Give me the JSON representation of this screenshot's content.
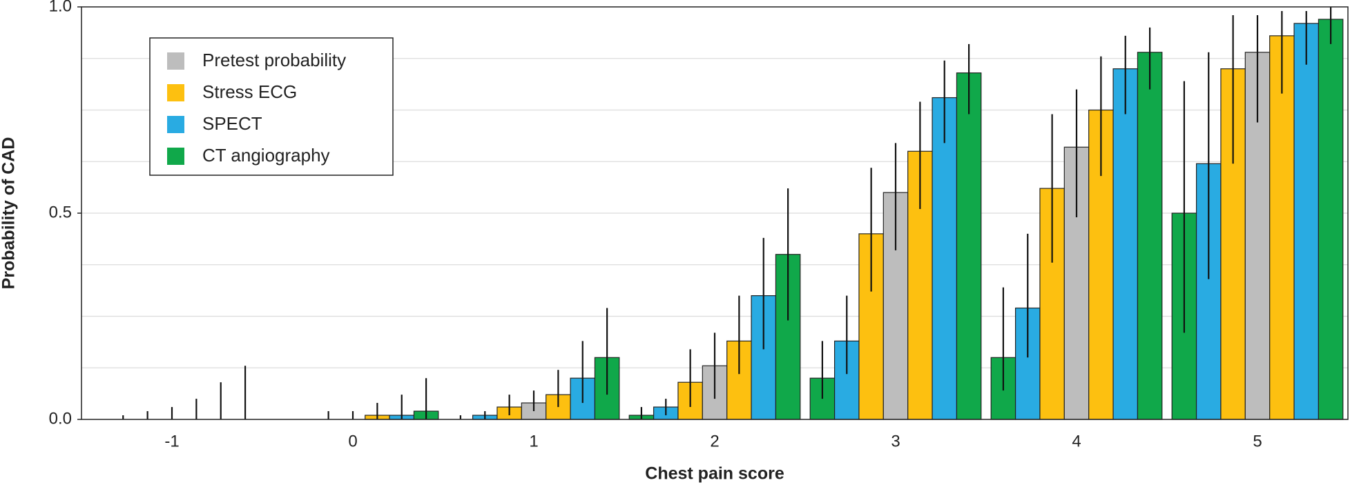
{
  "chart_data": {
    "type": "bar",
    "x_label": "Chest pain score",
    "y_label": "Probability of CAD",
    "categories": [
      "-1",
      "0",
      "1",
      "2",
      "3",
      "4",
      "5"
    ],
    "legend": [
      {
        "name": "Pretest probability",
        "color": "#bdbdbd"
      },
      {
        "name": "Stress ECG",
        "color": "#fdc010"
      },
      {
        "name": "SPECT",
        "color": "#29abe2"
      },
      {
        "name": "CT angiography",
        "color": "#10a84a"
      }
    ],
    "legend_position": "upper left",
    "series": [
      {
        "color": "#10a84a",
        "values": [
          0,
          0,
          0,
          0.01,
          0.1,
          0.15,
          0.5
        ],
        "low": [
          null,
          null,
          0,
          0,
          0.05,
          0.07,
          0.21
        ],
        "high": [
          null,
          null,
          0.01,
          0.03,
          0.19,
          0.32,
          0.82
        ]
      },
      {
        "color": "#29abe2",
        "values": [
          0,
          0,
          0.01,
          0.03,
          0.19,
          0.27,
          0.62
        ],
        "low": [
          0,
          null,
          0,
          0.01,
          0.11,
          0.15,
          0.34
        ],
        "high": [
          0.01,
          null,
          0.02,
          0.05,
          0.3,
          0.45,
          0.89
        ]
      },
      {
        "color": "#fdc010",
        "values": [
          0,
          0,
          0.03,
          0.09,
          0.45,
          0.56,
          0.85
        ],
        "low": [
          0,
          0,
          0.01,
          0.03,
          0.31,
          0.38,
          0.62
        ],
        "high": [
          0.02,
          0.02,
          0.06,
          0.17,
          0.61,
          0.74,
          0.98
        ]
      },
      {
        "color": "#bdbdbd",
        "values": [
          0,
          0,
          0.04,
          0.13,
          0.55,
          0.66,
          0.89
        ],
        "low": [
          0,
          0,
          0.02,
          0.05,
          0.41,
          0.49,
          0.72
        ],
        "high": [
          0.03,
          0.02,
          0.07,
          0.21,
          0.67,
          0.8,
          0.98
        ]
      },
      {
        "color": "#fdc010",
        "values": [
          0,
          0.01,
          0.06,
          0.19,
          0.65,
          0.75,
          0.93
        ],
        "low": [
          0,
          0,
          0.03,
          0.11,
          0.51,
          0.59,
          0.79
        ],
        "high": [
          0.05,
          0.04,
          0.12,
          0.3,
          0.77,
          0.88,
          0.99
        ]
      },
      {
        "color": "#29abe2",
        "values": [
          0,
          0.01,
          0.1,
          0.3,
          0.78,
          0.85,
          0.96
        ],
        "low": [
          0,
          0,
          0.04,
          0.17,
          0.67,
          0.74,
          0.86
        ],
        "high": [
          0.09,
          0.06,
          0.19,
          0.44,
          0.87,
          0.93,
          0.99
        ]
      },
      {
        "color": "#10a84a",
        "values": [
          0,
          0.02,
          0.15,
          0.4,
          0.84,
          0.89,
          0.97
        ],
        "low": [
          0,
          0,
          0.06,
          0.24,
          0.74,
          0.8,
          0.91
        ],
        "high": [
          0.13,
          0.1,
          0.27,
          0.56,
          0.91,
          0.95,
          1.0
        ]
      }
    ],
    "ylim": [
      0,
      1
    ],
    "yticks": [
      {
        "value": 0,
        "label": "0.0"
      },
      0.5,
      {
        "value": 1,
        "label": "1.0"
      }
    ],
    "minor_yticks": [
      0.125,
      0.25,
      0.375,
      0.625,
      0.75,
      0.875
    ],
    "grid": true
  }
}
